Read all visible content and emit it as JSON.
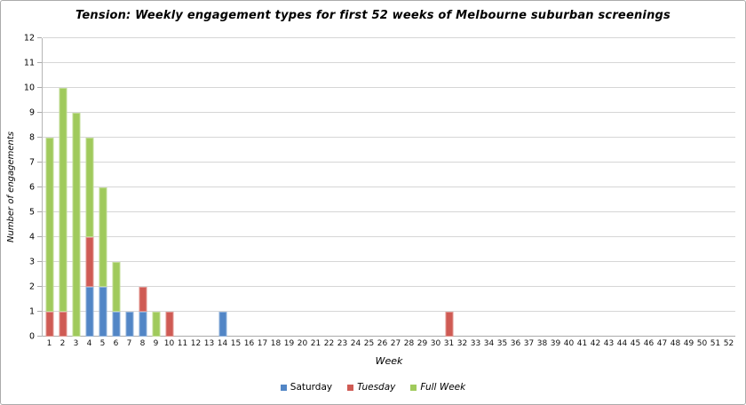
{
  "chart_data": {
    "type": "bar",
    "stacked": true,
    "title": "Tension: Weekly engagement types for first 52 weeks of Melbourne suburban screenings",
    "xlabel": "Week",
    "ylabel": "Number of engagements",
    "ylim": [
      0,
      12
    ],
    "ytick_step": 1,
    "grid": true,
    "legend_position": "bottom",
    "categories": [
      1,
      2,
      3,
      4,
      5,
      6,
      7,
      8,
      9,
      10,
      11,
      12,
      13,
      14,
      15,
      16,
      17,
      18,
      19,
      20,
      21,
      22,
      23,
      24,
      25,
      26,
      27,
      28,
      29,
      30,
      31,
      32,
      33,
      34,
      35,
      36,
      37,
      38,
      39,
      40,
      41,
      42,
      43,
      44,
      45,
      46,
      47,
      48,
      49,
      50,
      51,
      52
    ],
    "series": [
      {
        "name": "Saturday",
        "color": "#5286C6",
        "italic": false,
        "values": [
          0,
          0,
          0,
          2,
          2,
          1,
          1,
          1,
          0,
          0,
          0,
          0,
          0,
          1,
          0,
          0,
          0,
          0,
          0,
          0,
          0,
          0,
          0,
          0,
          0,
          0,
          0,
          0,
          0,
          0,
          0,
          0,
          0,
          0,
          0,
          0,
          0,
          0,
          0,
          0,
          0,
          0,
          0,
          0,
          0,
          0,
          0,
          0,
          0,
          0,
          0,
          0
        ]
      },
      {
        "name": "Tuesday",
        "color": "#CF5B54",
        "italic": true,
        "values": [
          1,
          1,
          0,
          2,
          0,
          0,
          0,
          1,
          0,
          1,
          0,
          0,
          0,
          0,
          0,
          0,
          0,
          0,
          0,
          0,
          0,
          0,
          0,
          0,
          0,
          0,
          0,
          0,
          0,
          0,
          1,
          0,
          0,
          0,
          0,
          0,
          0,
          0,
          0,
          0,
          0,
          0,
          0,
          0,
          0,
          0,
          0,
          0,
          0,
          0,
          0,
          0
        ]
      },
      {
        "name": "Full Week",
        "color": "#A0CA5C",
        "italic": true,
        "values": [
          7,
          9,
          9,
          4,
          4,
          2,
          0,
          0,
          1,
          0,
          0,
          0,
          0,
          0,
          0,
          0,
          0,
          0,
          0,
          0,
          0,
          0,
          0,
          0,
          0,
          0,
          0,
          0,
          0,
          0,
          0,
          0,
          0,
          0,
          0,
          0,
          0,
          0,
          0,
          0,
          0,
          0,
          0,
          0,
          0,
          0,
          0,
          0,
          0,
          0,
          0,
          0
        ]
      }
    ]
  },
  "colors": {
    "gridline": "#D6D6D6",
    "axis": "#ABABAB",
    "frame_border": "#ABABAB",
    "background": "#FFFFFF",
    "text": "#000000"
  }
}
